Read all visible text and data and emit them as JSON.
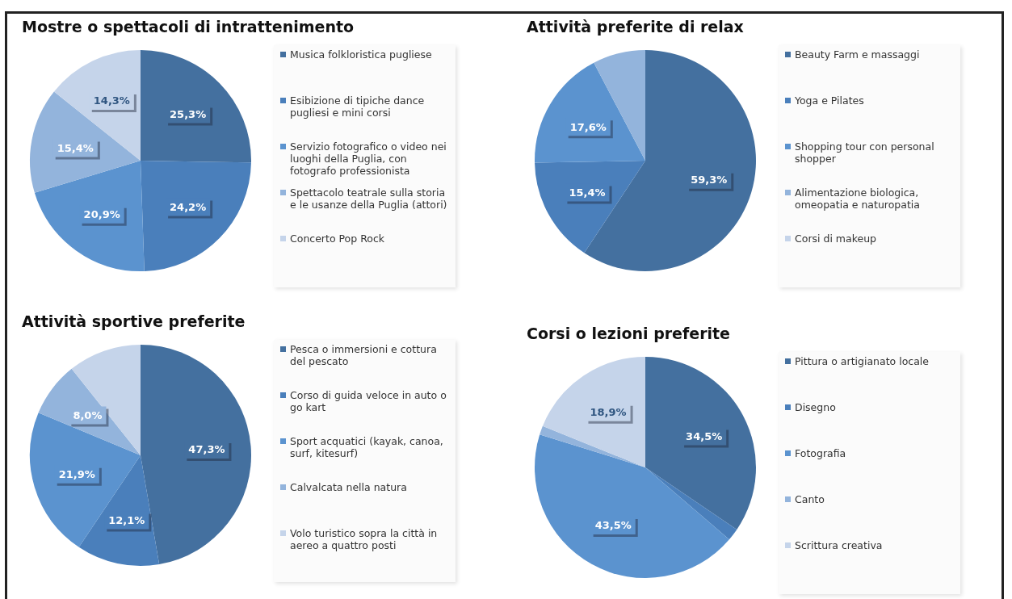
{
  "chart_data": [
    {
      "type": "pie",
      "title": "Mostre o spettacoli di intrattenimento",
      "categories": [
        "Musica folkloristica pugliese",
        "Esibizione di tipiche dance pugliesi e mini corsi",
        "Servizio fotografico o video nei luoghi della Puglia, con fotografo professionista",
        "Spettacolo teatrale sulla storia e le usanze della Puglia (attori)",
        "Concerto Pop Rock"
      ],
      "values": [
        25.3,
        24.2,
        20.9,
        15.4,
        14.3
      ],
      "colors": [
        "#44709f",
        "#4a7fbb",
        "#5b93cf",
        "#93b4dc",
        "#c5d4ea"
      ],
      "value_labels": [
        "25,3%",
        "24,2%",
        "20,9%",
        "15,4%",
        "14,3%"
      ],
      "legend": "right"
    },
    {
      "type": "pie",
      "title": "Attività preferite di relax",
      "categories": [
        "Beauty Farm e massaggi",
        "Yoga e Pilates",
        "Shopping tour con personal shopper",
        "Alimentazione biologica, omeopatia e naturopatia",
        "Corsi di makeup"
      ],
      "values": [
        59.3,
        15.4,
        17.6,
        7.7,
        0
      ],
      "colors": [
        "#44709f",
        "#4a7fbb",
        "#5b93cf",
        "#93b4dc",
        "#c5d4ea"
      ],
      "value_labels": [
        "59,3%",
        "15,4%",
        "17,6%",
        null,
        null
      ],
      "legend": "right"
    },
    {
      "type": "pie",
      "title": "Attività sportive preferite",
      "categories": [
        "Pesca o immersioni e cottura del pescato",
        "Corso di guida veloce in auto o go kart",
        "Sport acquatici (kayak, canoa, surf, kitesurf)",
        "Calvalcata nella natura",
        "Volo turistico sopra la città in aereo a quattro posti"
      ],
      "values": [
        47.3,
        12.1,
        21.9,
        8.0,
        10.7
      ],
      "colors": [
        "#44709f",
        "#4a7fbb",
        "#5b93cf",
        "#93b4dc",
        "#c5d4ea"
      ],
      "value_labels": [
        "47,3%",
        "12,1%",
        "21,9%",
        "8,0%",
        null
      ],
      "legend": "right"
    },
    {
      "type": "pie",
      "title": "Corsi o lezioni preferite",
      "categories": [
        "Pittura o artigianato locale",
        "Disegno",
        "Fotografia",
        "Canto",
        "Scrittura creativa"
      ],
      "values": [
        34.5,
        1.8,
        43.5,
        1.3,
        18.9
      ],
      "colors": [
        "#44709f",
        "#4a7fbb",
        "#5b93cf",
        "#93b4dc",
        "#c5d4ea"
      ],
      "value_labels": [
        "34,5%",
        null,
        "43,5%",
        null,
        "18,9%"
      ],
      "legend": "right"
    }
  ]
}
